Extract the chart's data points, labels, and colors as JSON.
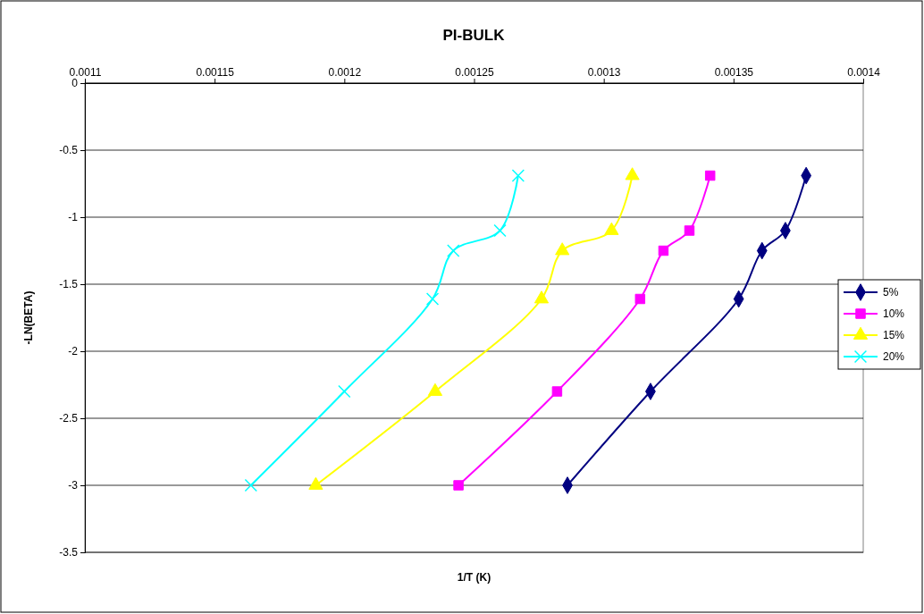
{
  "chart_data": {
    "type": "line",
    "title": "PI-BULK",
    "xlabel": "1/T (K)",
    "ylabel": "-LN(BETA)",
    "xlim": [
      0.0011,
      0.0014
    ],
    "xticks": [
      0.0011,
      0.00115,
      0.0012,
      0.00125,
      0.0013,
      0.00135,
      0.0014
    ],
    "ylim": [
      -3.5,
      0
    ],
    "yticks": [
      -3.5,
      -3,
      -2.5,
      -2,
      -1.5,
      -1,
      -0.5,
      0
    ],
    "grid": "y",
    "legend": "right",
    "series": [
      {
        "name": "5%",
        "color": "#000080",
        "marker": "diamond",
        "x": [
          0.001286,
          0.001318,
          0.001352,
          0.001361,
          0.00137,
          0.001378
        ],
        "values": [
          -3.0,
          -2.3,
          -1.61,
          -1.25,
          -1.1,
          -0.69
        ]
      },
      {
        "name": "10%",
        "color": "#ff00ff",
        "marker": "square",
        "x": [
          0.001244,
          0.001282,
          0.001314,
          0.001323,
          0.001333,
          0.001341
        ],
        "values": [
          -3.0,
          -2.3,
          -1.61,
          -1.25,
          -1.1,
          -0.69
        ]
      },
      {
        "name": "15%",
        "color": "#ffff00",
        "marker": "triangle",
        "x": [
          0.001189,
          0.001235,
          0.001276,
          0.001284,
          0.001303,
          0.001311
        ],
        "values": [
          -3.0,
          -2.3,
          -1.61,
          -1.25,
          -1.1,
          -0.69
        ]
      },
      {
        "name": "20%",
        "color": "#00ffff",
        "marker": "cross",
        "x": [
          0.001164,
          0.0012,
          0.001234,
          0.001242,
          0.00126,
          0.001267
        ],
        "values": [
          -3.0,
          -2.3,
          -1.61,
          -1.25,
          -1.1,
          -0.69
        ]
      }
    ]
  }
}
